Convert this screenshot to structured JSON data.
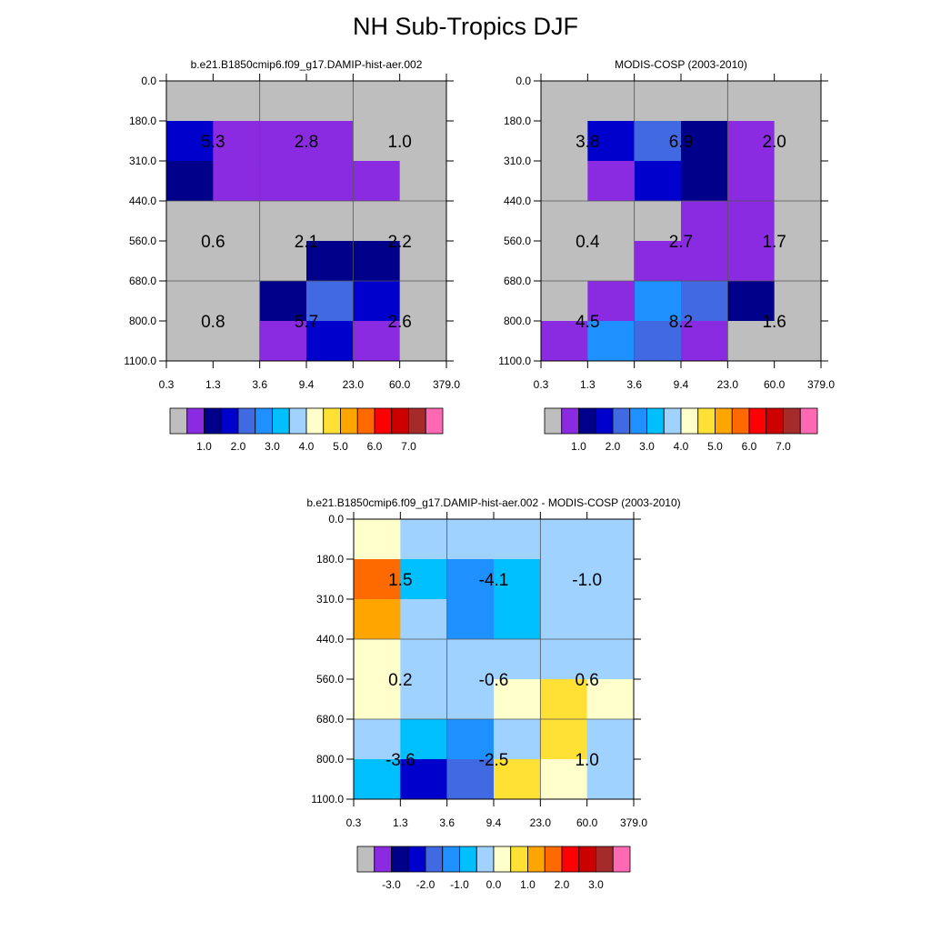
{
  "figure": {
    "title": "NH Sub-Tropics DJF"
  },
  "chart_data": [
    {
      "type": "heatmap",
      "title": "b.e21.B1850cmip6.f09_g17.DAMIP-hist-aer.002",
      "x_ticks": [
        "0.3",
        "1.3",
        "3.6",
        "9.4",
        "23.0",
        "60.0",
        "379.0"
      ],
      "y_ticks": [
        "0.0",
        "180.0",
        "310.0",
        "440.0",
        "560.0",
        "680.0",
        "800.0",
        "1100.0"
      ],
      "cell_colors": [
        [
          "#BEBEBE",
          "#BEBEBE",
          "#BEBEBE",
          "#BEBEBE",
          "#BEBEBE",
          "#BEBEBE"
        ],
        [
          "#0000CD",
          "#8A2BE2",
          "#8A2BE2",
          "#8A2BE2",
          "#BEBEBE",
          "#BEBEBE"
        ],
        [
          "#00008B",
          "#8A2BE2",
          "#8A2BE2",
          "#8A2BE2",
          "#8A2BE2",
          "#BEBEBE"
        ],
        [
          "#BEBEBE",
          "#BEBEBE",
          "#BEBEBE",
          "#BEBEBE",
          "#BEBEBE",
          "#BEBEBE"
        ],
        [
          "#BEBEBE",
          "#BEBEBE",
          "#BEBEBE",
          "#00008B",
          "#00008B",
          "#BEBEBE"
        ],
        [
          "#BEBEBE",
          "#BEBEBE",
          "#00008B",
          "#4169E1",
          "#0000CD",
          "#BEBEBE"
        ],
        [
          "#BEBEBE",
          "#BEBEBE",
          "#8A2BE2",
          "#0000CD",
          "#8A2BE2",
          "#BEBEBE"
        ]
      ],
      "cell_labels": [
        {
          "text": "5.3",
          "col": 1,
          "row": 1.5
        },
        {
          "text": "2.8",
          "col": 3,
          "row": 1.5
        },
        {
          "text": "1.0",
          "col": 5,
          "row": 1.5
        },
        {
          "text": "0.6",
          "col": 1,
          "row": 4
        },
        {
          "text": "2.1",
          "col": 3,
          "row": 4
        },
        {
          "text": "2.2",
          "col": 5,
          "row": 4
        },
        {
          "text": "0.8",
          "col": 1,
          "row": 6
        },
        {
          "text": "5.7",
          "col": 3,
          "row": 6
        },
        {
          "text": "2.6",
          "col": 5,
          "row": 6
        }
      ],
      "colorbar": {
        "colors": [
          "#BEBEBE",
          "#8A2BE2",
          "#00008B",
          "#0000CD",
          "#4169E1",
          "#1E90FF",
          "#00BFFF",
          "#A0D2FF",
          "#FFFFCC",
          "#FFE135",
          "#FFA500",
          "#FF6A00",
          "#FF0000",
          "#CD0000",
          "#A52A2A",
          "#FF69B4"
        ],
        "labels": [
          {
            "text": "1.0",
            "pos": 2
          },
          {
            "text": "2.0",
            "pos": 4
          },
          {
            "text": "3.0",
            "pos": 6
          },
          {
            "text": "4.0",
            "pos": 8
          },
          {
            "text": "5.0",
            "pos": 10
          },
          {
            "text": "6.0",
            "pos": 12
          },
          {
            "text": "7.0",
            "pos": 14
          }
        ]
      }
    },
    {
      "type": "heatmap",
      "title": "MODIS-COSP (2003-2010)",
      "x_ticks": [
        "0.3",
        "1.3",
        "3.6",
        "9.4",
        "23.0",
        "60.0",
        "379.0"
      ],
      "y_ticks": [
        "0.0",
        "180.0",
        "310.0",
        "440.0",
        "560.0",
        "680.0",
        "800.0",
        "1100.0"
      ],
      "cell_colors": [
        [
          "#BEBEBE",
          "#BEBEBE",
          "#BEBEBE",
          "#BEBEBE",
          "#BEBEBE",
          "#BEBEBE"
        ],
        [
          "#BEBEBE",
          "#0000CD",
          "#4169E1",
          "#00008B",
          "#8A2BE2",
          "#BEBEBE"
        ],
        [
          "#BEBEBE",
          "#8A2BE2",
          "#0000CD",
          "#00008B",
          "#8A2BE2",
          "#BEBEBE"
        ],
        [
          "#BEBEBE",
          "#BEBEBE",
          "#BEBEBE",
          "#8A2BE2",
          "#8A2BE2",
          "#BEBEBE"
        ],
        [
          "#BEBEBE",
          "#BEBEBE",
          "#8A2BE2",
          "#8A2BE2",
          "#8A2BE2",
          "#BEBEBE"
        ],
        [
          "#BEBEBE",
          "#8A2BE2",
          "#1E90FF",
          "#4169E1",
          "#00008B",
          "#BEBEBE"
        ],
        [
          "#8A2BE2",
          "#1E90FF",
          "#4169E1",
          "#8A2BE2",
          "#BEBEBE",
          "#BEBEBE"
        ]
      ],
      "cell_labels": [
        {
          "text": "3.8",
          "col": 1,
          "row": 1.5
        },
        {
          "text": "6.9",
          "col": 3,
          "row": 1.5
        },
        {
          "text": "2.0",
          "col": 5,
          "row": 1.5
        },
        {
          "text": "0.4",
          "col": 1,
          "row": 4
        },
        {
          "text": "2.7",
          "col": 3,
          "row": 4
        },
        {
          "text": "1.7",
          "col": 5,
          "row": 4
        },
        {
          "text": "4.5",
          "col": 1,
          "row": 6
        },
        {
          "text": "8.2",
          "col": 3,
          "row": 6
        },
        {
          "text": "1.6",
          "col": 5,
          "row": 6
        }
      ],
      "colorbar": {
        "colors": [
          "#BEBEBE",
          "#8A2BE2",
          "#00008B",
          "#0000CD",
          "#4169E1",
          "#1E90FF",
          "#00BFFF",
          "#A0D2FF",
          "#FFFFCC",
          "#FFE135",
          "#FFA500",
          "#FF6A00",
          "#FF0000",
          "#CD0000",
          "#A52A2A",
          "#FF69B4"
        ],
        "labels": [
          {
            "text": "1.0",
            "pos": 2
          },
          {
            "text": "2.0",
            "pos": 4
          },
          {
            "text": "3.0",
            "pos": 6
          },
          {
            "text": "4.0",
            "pos": 8
          },
          {
            "text": "5.0",
            "pos": 10
          },
          {
            "text": "6.0",
            "pos": 12
          },
          {
            "text": "7.0",
            "pos": 14
          }
        ]
      }
    },
    {
      "type": "heatmap",
      "title": "b.e21.B1850cmip6.f09_g17.DAMIP-hist-aer.002 - MODIS-COSP (2003-2010)",
      "x_ticks": [
        "0.3",
        "1.3",
        "3.6",
        "9.4",
        "23.0",
        "60.0",
        "379.0"
      ],
      "y_ticks": [
        "0.0",
        "180.0",
        "310.0",
        "440.0",
        "560.0",
        "680.0",
        "800.0",
        "1100.0"
      ],
      "cell_colors": [
        [
          "#FFFFCC",
          "#A0D2FF",
          "#A0D2FF",
          "#A0D2FF",
          "#A0D2FF",
          "#A0D2FF"
        ],
        [
          "#FF6A00",
          "#00BFFF",
          "#1E90FF",
          "#00BFFF",
          "#A0D2FF",
          "#A0D2FF"
        ],
        [
          "#FFA500",
          "#A0D2FF",
          "#1E90FF",
          "#00BFFF",
          "#A0D2FF",
          "#A0D2FF"
        ],
        [
          "#FFFFCC",
          "#A0D2FF",
          "#A0D2FF",
          "#A0D2FF",
          "#A0D2FF",
          "#A0D2FF"
        ],
        [
          "#FFFFCC",
          "#A0D2FF",
          "#A0D2FF",
          "#FFFFCC",
          "#FFE135",
          "#FFFFCC"
        ],
        [
          "#A0D2FF",
          "#00BFFF",
          "#1E90FF",
          "#A0D2FF",
          "#FFE135",
          "#A0D2FF"
        ],
        [
          "#00BFFF",
          "#0000CD",
          "#4169E1",
          "#FFE135",
          "#FFFFCC",
          "#A0D2FF"
        ]
      ],
      "cell_labels": [
        {
          "text": "1.5",
          "col": 1,
          "row": 1.5
        },
        {
          "text": "-4.1",
          "col": 3,
          "row": 1.5
        },
        {
          "text": "-1.0",
          "col": 5,
          "row": 1.5
        },
        {
          "text": "0.2",
          "col": 1,
          "row": 4
        },
        {
          "text": "-0.6",
          "col": 3,
          "row": 4
        },
        {
          "text": "0.6",
          "col": 5,
          "row": 4
        },
        {
          "text": "-3.6",
          "col": 1,
          "row": 6
        },
        {
          "text": "-2.5",
          "col": 3,
          "row": 6
        },
        {
          "text": "1.0",
          "col": 5,
          "row": 6
        }
      ],
      "colorbar": {
        "colors": [
          "#BEBEBE",
          "#8A2BE2",
          "#00008B",
          "#0000CD",
          "#4169E1",
          "#1E90FF",
          "#00BFFF",
          "#A0D2FF",
          "#FFFFCC",
          "#FFE135",
          "#FFA500",
          "#FF6A00",
          "#FF0000",
          "#CD0000",
          "#A52A2A",
          "#FF69B4"
        ],
        "labels": [
          {
            "text": "-3.0",
            "pos": 2
          },
          {
            "text": "-2.0",
            "pos": 4
          },
          {
            "text": "-1.0",
            "pos": 6
          },
          {
            "text": "0.0",
            "pos": 8
          },
          {
            "text": "1.0",
            "pos": 10
          },
          {
            "text": "2.0",
            "pos": 12
          },
          {
            "text": "3.0",
            "pos": 14
          }
        ]
      }
    }
  ]
}
